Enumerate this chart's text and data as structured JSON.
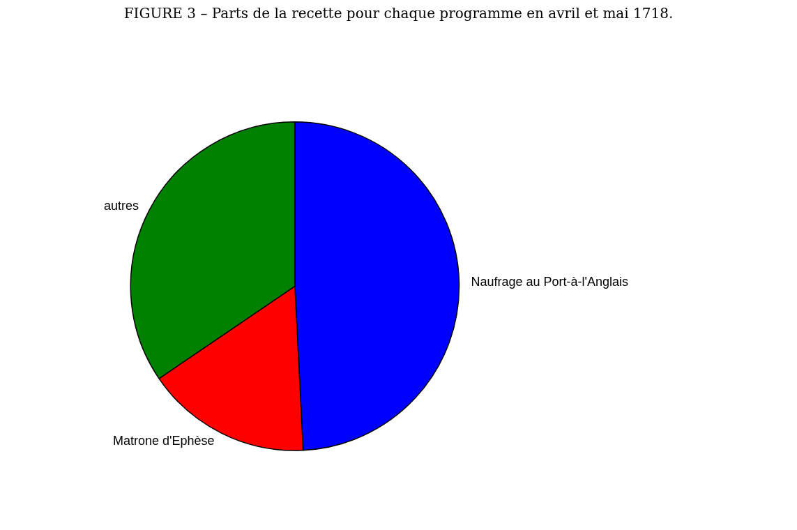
{
  "chart_data": {
    "type": "pie",
    "title": "FIGURE 3 – Parts de la recette pour chaque programme en avril et mai 1718.",
    "categories": [
      "Naufrage au Port-à-l'Anglais",
      "Matrone d'Ephèse",
      "autres"
    ],
    "values": [
      49.2,
      16.3,
      34.5
    ],
    "colors": [
      "#0000ff",
      "#ff0000",
      "#008000"
    ]
  }
}
